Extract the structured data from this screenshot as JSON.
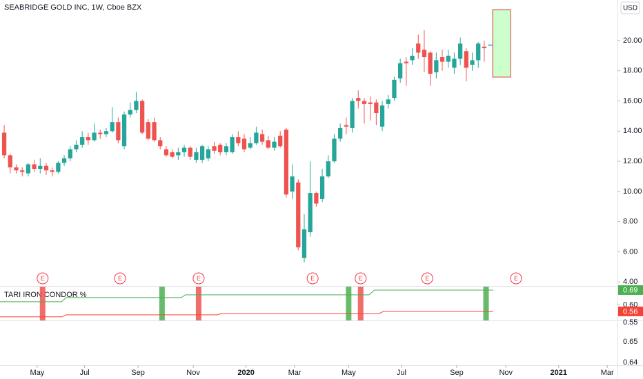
{
  "chart_data": [
    {
      "type": "candlestick",
      "title": "SEABRIDGE GOLD INC, 1W, Cboe BZX",
      "currency": "USD",
      "up_color": "#26a69a",
      "down_color": "#ef5350",
      "open": [
        13.9,
        12.4,
        11.6,
        11.4,
        11.2,
        11.8,
        11.5,
        11.7,
        11.4,
        11.3,
        11.9,
        12.2,
        12.8,
        13.1,
        13.6,
        13.4,
        13.9,
        13.8,
        14.0,
        14.6,
        13.0,
        15.1,
        15.4,
        16.0,
        14.6,
        14.6,
        13.4,
        12.8,
        12.6,
        12.4,
        12.6,
        12.9,
        12.1,
        12.1,
        12.2,
        13.0,
        13.1,
        12.6,
        12.6,
        13.6,
        13.5,
        12.9,
        13.2,
        13.8,
        13.4,
        12.9,
        13.7,
        14.1,
        10.0,
        10.6,
        5.6,
        7.3,
        9.9,
        9.5,
        11.0,
        12.0,
        13.5,
        14.4,
        14.2,
        16.2,
        16.0,
        15.9,
        15.9,
        14.3,
        15.8,
        16.2,
        17.5,
        18.6,
        18.7,
        19.8,
        19.4,
        19.2,
        17.9,
        18.9,
        18.6,
        18.2,
        18.8,
        19.3,
        18.4,
        18.7,
        19.6
      ],
      "high": [
        14.4,
        12.5,
        11.8,
        11.6,
        11.9,
        12.1,
        12.2,
        11.9,
        11.6,
        12.0,
        12.4,
        13.0,
        13.4,
        14.0,
        13.9,
        14.5,
        14.1,
        14.2,
        15.6,
        14.9,
        15.3,
        15.9,
        16.6,
        16.1,
        14.8,
        14.9,
        13.6,
        13.0,
        12.8,
        12.9,
        13.1,
        13.0,
        12.9,
        13.1,
        13.0,
        13.3,
        13.2,
        13.2,
        13.8,
        14.0,
        13.8,
        13.6,
        14.3,
        14.1,
        13.7,
        13.6,
        14.0,
        14.2,
        11.8,
        10.8,
        8.5,
        12.0,
        10.0,
        11.5,
        12.4,
        13.8,
        14.5,
        14.9,
        16.2,
        16.7,
        16.2,
        16.3,
        16.1,
        16.0,
        16.4,
        17.6,
        18.8,
        18.9,
        19.5,
        20.4,
        20.7,
        19.3,
        19.2,
        19.4,
        19.4,
        19.2,
        20.2,
        19.5,
        19.2,
        19.9,
        20.0
      ],
      "low": [
        12.2,
        11.2,
        11.2,
        11.0,
        11.0,
        11.3,
        11.2,
        11.1,
        11.0,
        11.2,
        11.7,
        12.0,
        12.6,
        12.9,
        13.1,
        13.3,
        13.5,
        13.6,
        13.9,
        13.2,
        12.8,
        14.9,
        15.2,
        13.8,
        13.4,
        13.3,
        12.8,
        12.3,
        12.2,
        12.1,
        12.3,
        12.1,
        11.9,
        11.9,
        12.0,
        12.5,
        12.4,
        12.4,
        12.5,
        13.0,
        12.6,
        12.8,
        13.1,
        13.1,
        12.8,
        12.7,
        12.9,
        9.6,
        9.5,
        6.1,
        5.3,
        7.0,
        9.0,
        9.3,
        10.9,
        11.9,
        13.3,
        13.8,
        13.9,
        15.5,
        14.5,
        14.7,
        14.4,
        14.0,
        15.5,
        16.0,
        17.2,
        17.0,
        18.4,
        18.8,
        17.9,
        17.0,
        17.5,
        18.0,
        18.2,
        17.8,
        18.4,
        17.3,
        18.0,
        18.2,
        18.6
      ],
      "close": [
        12.4,
        11.6,
        11.4,
        11.3,
        11.8,
        11.5,
        11.7,
        11.4,
        11.3,
        11.9,
        12.2,
        12.8,
        13.1,
        13.6,
        13.4,
        13.9,
        13.8,
        14.0,
        14.6,
        13.4,
        15.1,
        15.4,
        16.0,
        13.9,
        13.5,
        13.4,
        13.0,
        12.4,
        12.3,
        12.6,
        12.9,
        12.3,
        12.6,
        13.0,
        12.8,
        12.7,
        12.6,
        13.0,
        13.6,
        13.2,
        12.8,
        13.2,
        13.9,
        13.3,
        12.9,
        13.3,
        13.0,
        9.8,
        11.0,
        6.3,
        7.5,
        9.9,
        9.2,
        11.0,
        12.0,
        13.5,
        14.2,
        14.3,
        16.0,
        16.0,
        15.8,
        15.8,
        15.2,
        15.7,
        16.1,
        17.4,
        18.5,
        18.5,
        19.0,
        19.2,
        18.9,
        17.8,
        18.7,
        18.6,
        19.0,
        18.8,
        19.8,
        18.2,
        18.7,
        19.8,
        19.5
      ],
      "current": {
        "value": 19.7,
        "color": "#2196f3"
      },
      "range_box": {
        "x": [
          81.4,
          84.4
        ],
        "y": [
          17.58,
          22.05
        ],
        "fill": "#ccffcc",
        "stroke": "#e53935"
      },
      "events": [
        {
          "label": "E",
          "x": 6.4
        },
        {
          "label": "E",
          "x": 19.3
        },
        {
          "label": "E",
          "x": 32.4
        },
        {
          "label": "E",
          "x": 51.4
        },
        {
          "label": "E",
          "x": 59.4
        },
        {
          "label": "E",
          "x": 70.5
        },
        {
          "label": "E",
          "x": 85.3
        }
      ],
      "xlim": [
        -0.7,
        102.2
      ],
      "xticks": [
        {
          "value": 5.5,
          "label": "May"
        },
        {
          "value": 13.4,
          "label": "Jul"
        },
        {
          "value": 22.3,
          "label": "Sep"
        },
        {
          "value": 31.5,
          "label": "Nov"
        },
        {
          "value": 40.3,
          "label": "2020"
        },
        {
          "value": 48.4,
          "label": "Mar"
        },
        {
          "value": 57.4,
          "label": "May"
        },
        {
          "value": 66.2,
          "label": "Jul"
        },
        {
          "value": 75.4,
          "label": "Sep"
        },
        {
          "value": 83.6,
          "label": "Nov"
        },
        {
          "value": 92.4,
          "label": "2021"
        },
        {
          "value": 100.5,
          "label": "Mar"
        }
      ],
      "ylim": [
        3.74,
        22.69
      ],
      "yticks": [
        {
          "value": 20,
          "label": "20.00"
        },
        {
          "value": 18,
          "label": "18.00"
        },
        {
          "value": 16,
          "label": "16.00"
        },
        {
          "value": 14,
          "label": "14.00"
        },
        {
          "value": 12,
          "label": "12.00"
        },
        {
          "value": 10,
          "label": "10.00"
        },
        {
          "value": 8,
          "label": "8.00"
        },
        {
          "value": 6,
          "label": "6.00"
        },
        {
          "value": 4,
          "label": "4.00"
        }
      ]
    },
    {
      "type": "line",
      "title": "TARI IRON CONDOR %",
      "series": [
        {
          "color": "#4caf50",
          "x": [
            -0.7,
            9.6,
            10.3,
            29.5,
            30.2,
            60.8,
            61.7,
            81.5
          ],
          "values": [
            0.619,
            0.619,
            0.644,
            0.644,
            0.661,
            0.661,
            0.69,
            0.69
          ],
          "last_label": "0.69"
        },
        {
          "color": "#f44336",
          "x": [
            -0.7,
            9.6,
            10.3,
            35.5,
            36.2,
            62.5,
            63.2,
            81.5
          ],
          "values": [
            0.527,
            0.527,
            0.539,
            0.539,
            0.547,
            0.547,
            0.56,
            0.56
          ],
          "last_label": "0.56"
        }
      ],
      "bands": [
        {
          "x": 6.4,
          "color": "#ef5350"
        },
        {
          "x": 26.3,
          "color": "#4caf50"
        },
        {
          "x": 32.4,
          "color": "#ef5350"
        },
        {
          "x": 57.4,
          "color": "#4caf50"
        },
        {
          "x": 59.4,
          "color": "#ef5350"
        },
        {
          "x": 80.3,
          "color": "#4caf50"
        }
      ],
      "ylim": [
        0.505,
        0.715
      ],
      "yticks": [
        {
          "value": 0.6,
          "label": "0.60"
        }
      ],
      "lower_axis_labels": [
        "0.55",
        "0.65",
        "0.64"
      ]
    }
  ]
}
